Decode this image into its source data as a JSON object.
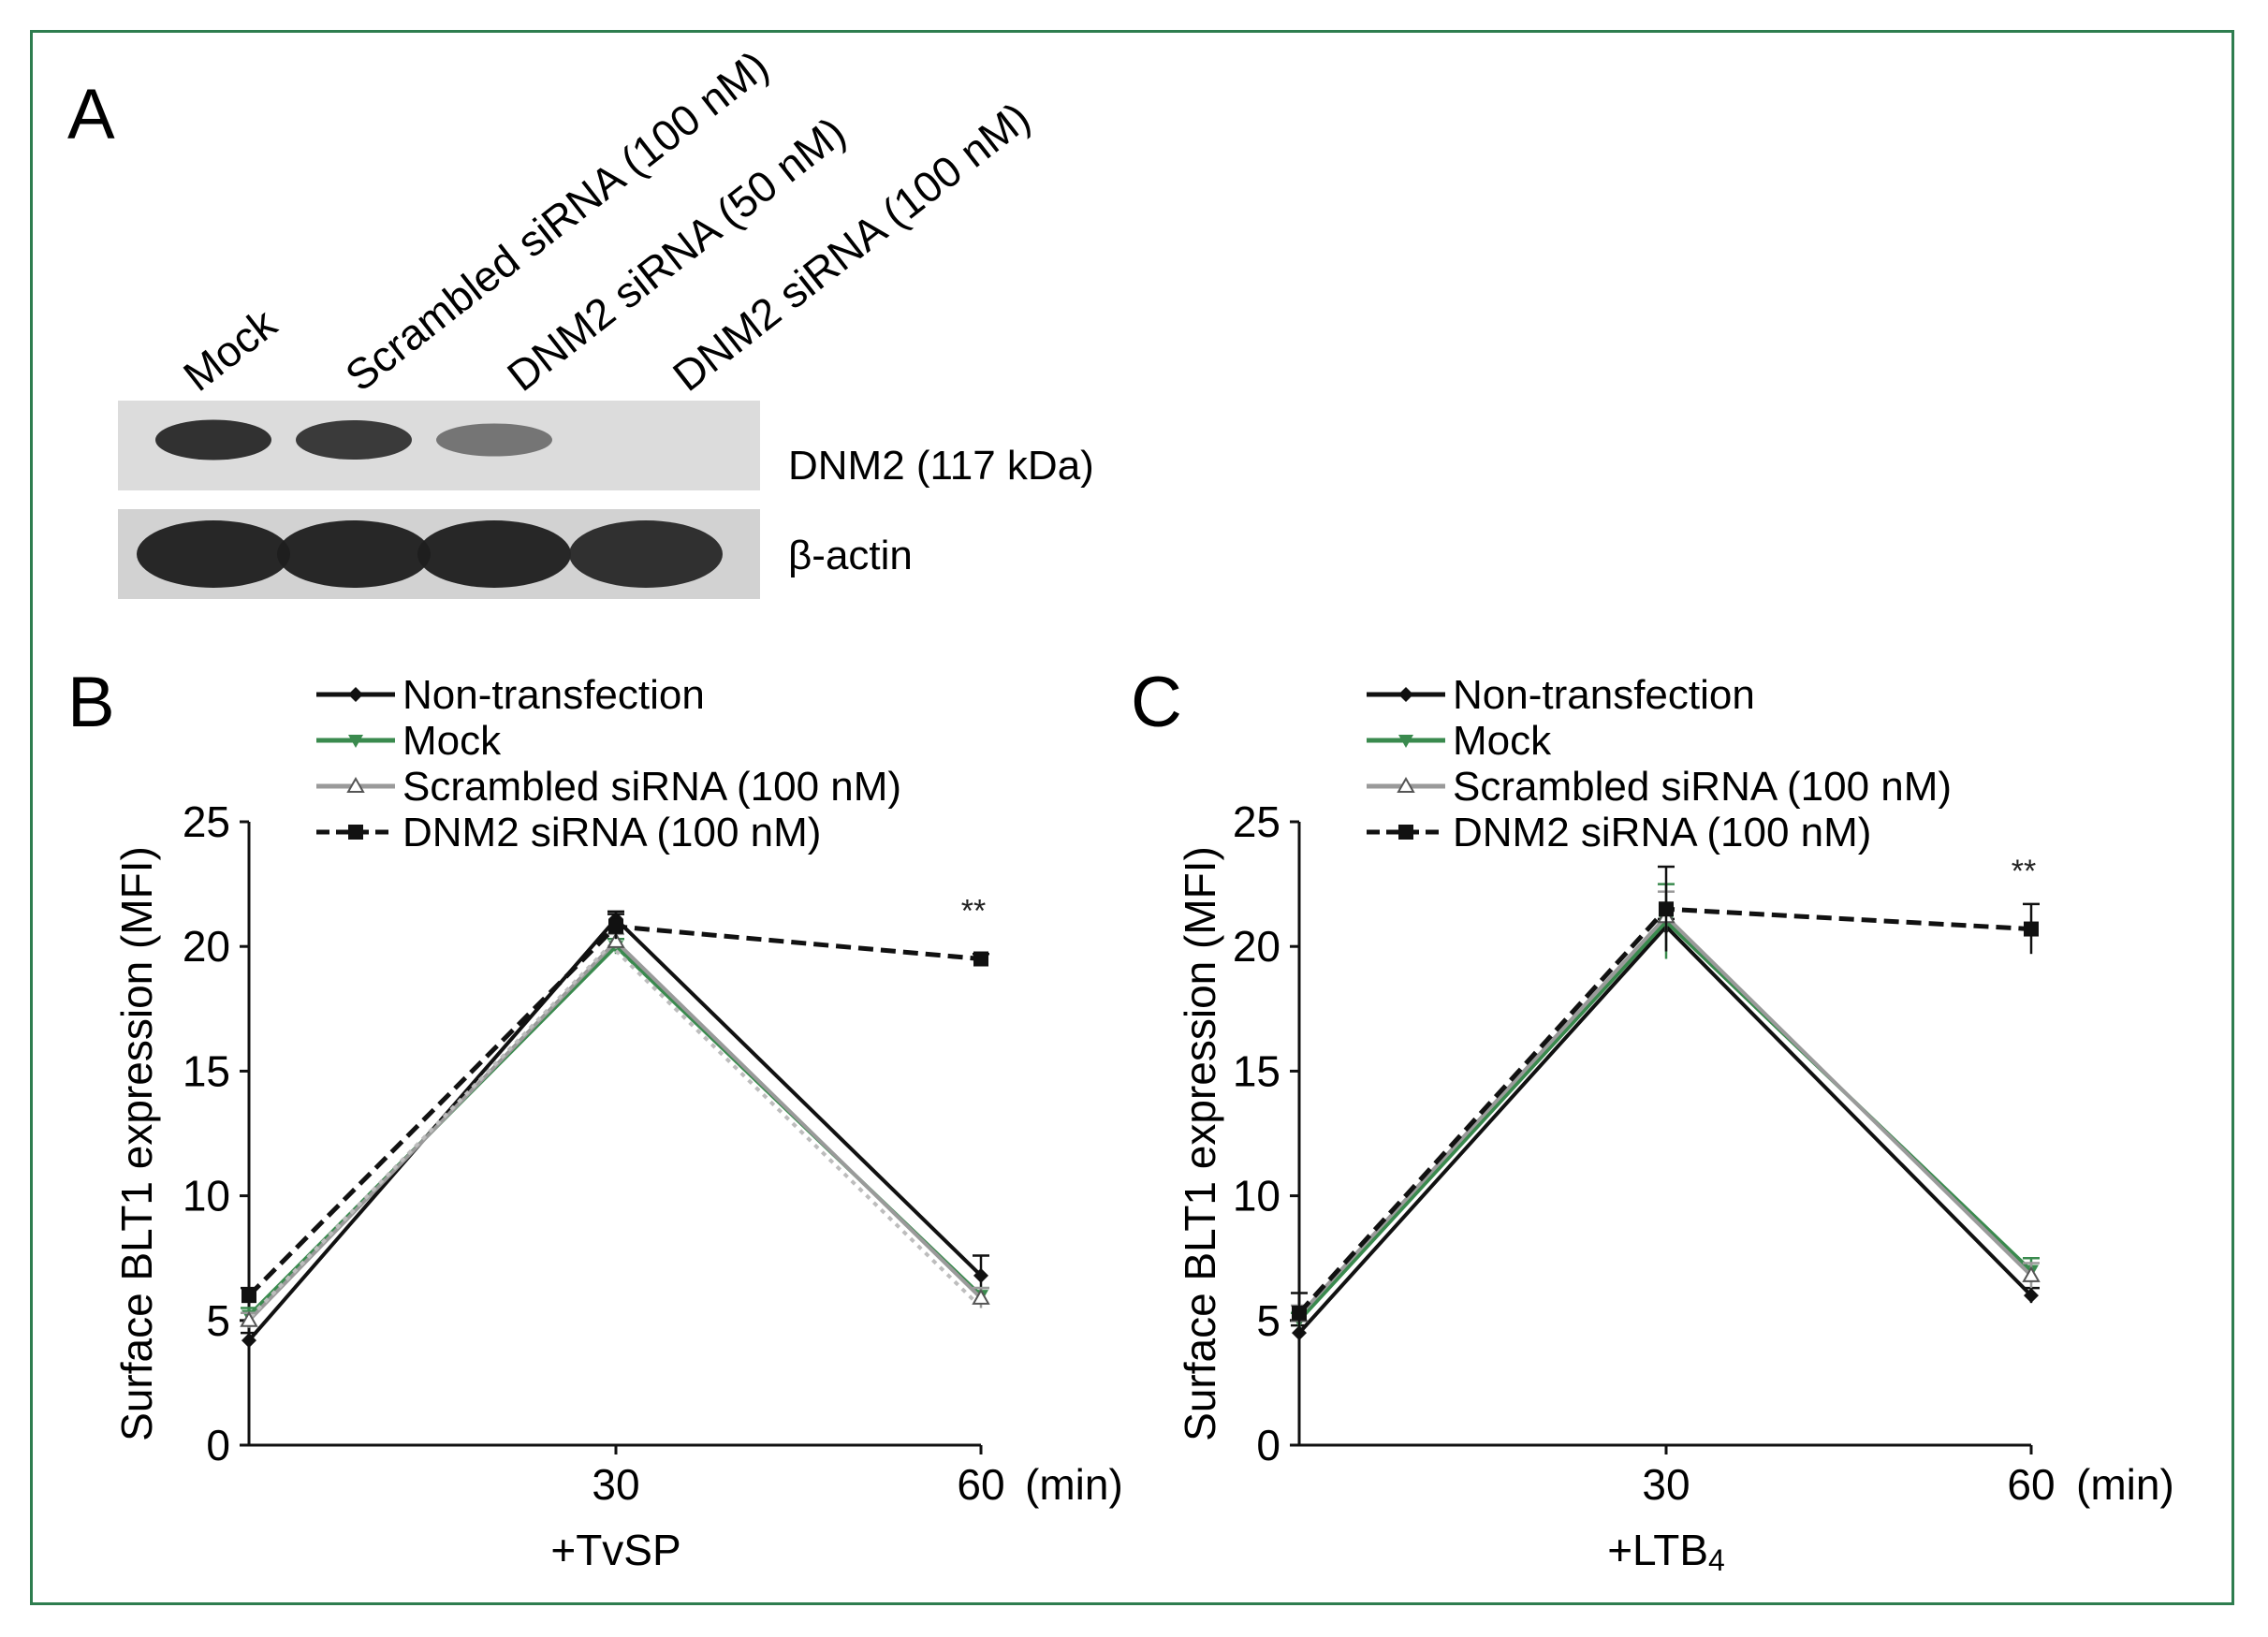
{
  "figure": {
    "border_color": "#2e7d4f",
    "panel_a": {
      "letter": "A",
      "lanes": [
        "Mock",
        "Scrambled siRNA (100 nM)",
        "DNM2 siRNA (50 nM)",
        "DNM2 siRNA (100 nM)"
      ],
      "bands": [
        {
          "label": "DNM2 (117 kDa)",
          "intensity": [
            0.95,
            0.9,
            0.55,
            0.0
          ]
        },
        {
          "label": "β-actin",
          "intensity": [
            1.0,
            1.0,
            1.0,
            0.95
          ]
        }
      ]
    }
  },
  "chart_data": [
    {
      "type": "line",
      "panel_letter": "B",
      "ylabel": "Surface BLT1 expression (MFI)",
      "xlabel": "+TvSP",
      "x_unit": "(min)",
      "x": [
        0,
        30,
        60
      ],
      "x_tick_labels": [
        "30",
        "60"
      ],
      "ylim": [
        0,
        25
      ],
      "y_ticks": [
        0,
        5,
        10,
        15,
        20,
        25
      ],
      "significance": {
        "label": "**",
        "x": 60,
        "y": 21.0
      },
      "series": [
        {
          "name": "Non-transfection",
          "values": [
            4.2,
            21.1,
            6.8
          ],
          "errors": [
            0.3,
            0.3,
            0.8
          ],
          "color": "#111111",
          "marker": "diamond",
          "dash": "solid"
        },
        {
          "name": "Mock",
          "values": [
            5.2,
            20.0,
            6.0
          ],
          "errors": [
            0.3,
            0.3,
            0.3
          ],
          "color": "#3a8a4e",
          "marker": "triangle-down",
          "dash": "solid"
        },
        {
          "name": "Scrambled siRNA (100 nM)",
          "values": [
            5.0,
            20.2,
            5.9
          ],
          "errors": [
            0.3,
            0.3,
            0.4
          ],
          "color": "#9a9a9a",
          "marker": "triangle-open",
          "dash": "solid"
        },
        {
          "name": "DNM2 siRNA (100 nM)",
          "values": [
            6.0,
            20.8,
            19.5
          ],
          "errors": [
            0.3,
            0.5,
            0.2
          ],
          "color": "#111111",
          "marker": "square",
          "dash": "dashed"
        }
      ]
    },
    {
      "type": "line",
      "panel_letter": "C",
      "ylabel": "Surface BLT1 expression (MFI)",
      "xlabel": "+LTB",
      "xlabel_sub": "4",
      "x_unit": "(min)",
      "x": [
        0,
        30,
        60
      ],
      "x_tick_labels": [
        "30",
        "60"
      ],
      "ylim": [
        0,
        25
      ],
      "y_ticks": [
        0,
        5,
        10,
        15,
        20,
        25
      ],
      "significance": {
        "label": "**",
        "x": 60,
        "y": 22.6
      },
      "series": [
        {
          "name": "Non-transfection",
          "values": [
            4.5,
            20.8,
            6.0
          ],
          "errors": [
            0.3,
            0.3,
            0.3
          ],
          "color": "#111111",
          "marker": "diamond",
          "dash": "solid"
        },
        {
          "name": "Mock",
          "values": [
            5.0,
            21.0,
            7.0
          ],
          "errors": [
            0.3,
            1.5,
            0.5
          ],
          "color": "#3a8a4e",
          "marker": "triangle-down",
          "dash": "solid"
        },
        {
          "name": "Scrambled siRNA (100 nM)",
          "values": [
            5.2,
            21.2,
            6.8
          ],
          "errors": [
            0.4,
            1.0,
            0.5
          ],
          "color": "#9a9a9a",
          "marker": "triangle-open",
          "dash": "solid"
        },
        {
          "name": "DNM2 siRNA (100 nM)",
          "values": [
            5.3,
            21.5,
            20.7
          ],
          "errors": [
            0.8,
            1.7,
            1.0
          ],
          "color": "#111111",
          "marker": "square",
          "dash": "dashed"
        }
      ]
    }
  ]
}
